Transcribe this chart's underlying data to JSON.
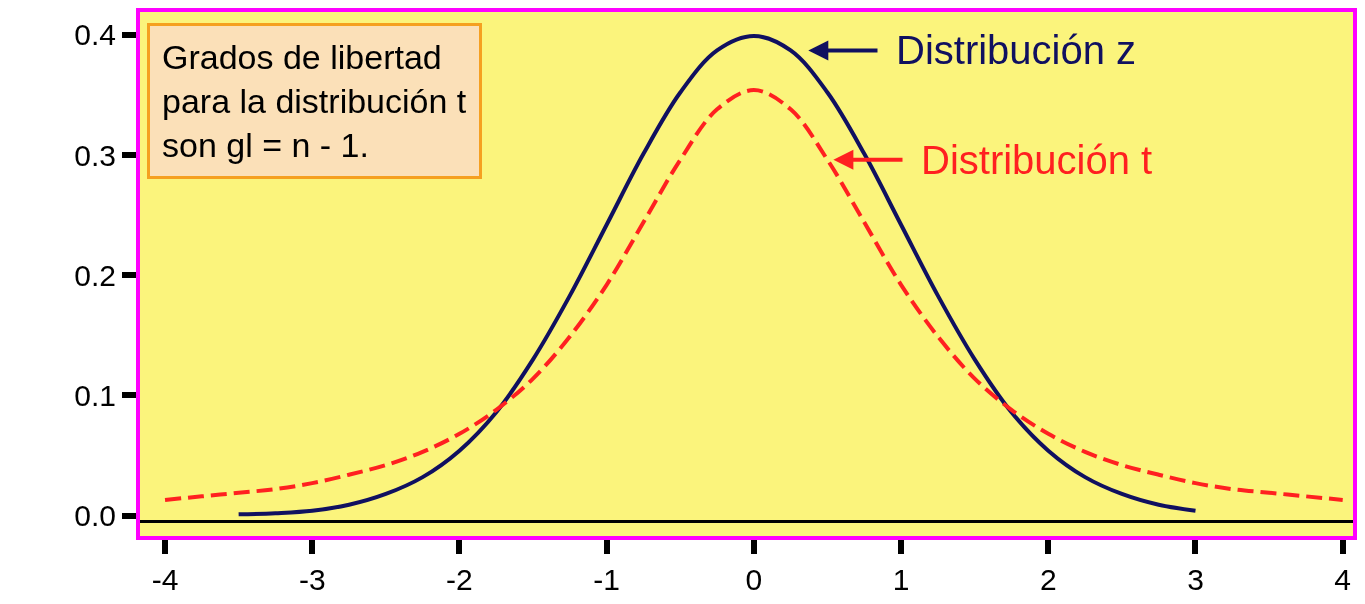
{
  "chart_data": {
    "type": "line",
    "xlim": [
      -4.17,
      4.07
    ],
    "ylim": [
      -0.017,
      0.419
    ],
    "xticks": [
      -4,
      -3,
      -2,
      -1,
      0,
      1,
      2,
      3,
      4
    ],
    "yticks": [
      {
        "value": 0,
        "label": "0.0"
      },
      0.1,
      0.2,
      0.3,
      0.4
    ],
    "grid": false,
    "legend": "top right",
    "marker": "none",
    "ref_lines": [
      {
        "axis": "y",
        "value": -0.005,
        "color": "#000000"
      }
    ],
    "annotations": [
      "Grados de libertad\npara la distribución t\nson gl = n - 1."
    ],
    "series": [
      {
        "name": "Distribución z",
        "color": "#101060",
        "line_style": "solid",
        "x": [
          -3.5,
          -3.25,
          -3,
          -2.75,
          -2.5,
          -2.25,
          -2,
          -1.75,
          -1.5,
          -1.25,
          -1,
          -0.75,
          -0.5,
          -0.25,
          0,
          0.25,
          0.5,
          0.75,
          1,
          1.25,
          1.5,
          1.75,
          2,
          2.25,
          2.5,
          2.75,
          3
        ],
        "values": [
          0.001,
          0.002,
          0.004,
          0.009,
          0.018,
          0.032,
          0.054,
          0.086,
          0.13,
          0.183,
          0.242,
          0.301,
          0.352,
          0.387,
          0.399,
          0.387,
          0.352,
          0.301,
          0.242,
          0.183,
          0.13,
          0.086,
          0.054,
          0.032,
          0.018,
          0.009,
          0.004
        ]
      },
      {
        "name": "Distribución t",
        "color": "#ff2020",
        "line_style": "dashed",
        "x": [
          -4,
          -3.75,
          -3.5,
          -3.25,
          -3,
          -2.75,
          -2.5,
          -2.25,
          -2,
          -1.75,
          -1.5,
          -1.25,
          -1,
          -0.75,
          -0.5,
          -0.25,
          0,
          0.25,
          0.5,
          0.75,
          1,
          1.25,
          1.5,
          1.75,
          2,
          2.25,
          2.5,
          2.75,
          3,
          3.25,
          3.5,
          3.75,
          4
        ],
        "values": [
          0.013,
          0.016,
          0.019,
          0.022,
          0.027,
          0.034,
          0.042,
          0.053,
          0.068,
          0.088,
          0.114,
          0.149,
          0.192,
          0.244,
          0.296,
          0.338,
          0.354,
          0.338,
          0.296,
          0.244,
          0.192,
          0.149,
          0.114,
          0.088,
          0.068,
          0.053,
          0.042,
          0.034,
          0.027,
          0.022,
          0.019,
          0.016,
          0.013
        ]
      }
    ]
  }
}
